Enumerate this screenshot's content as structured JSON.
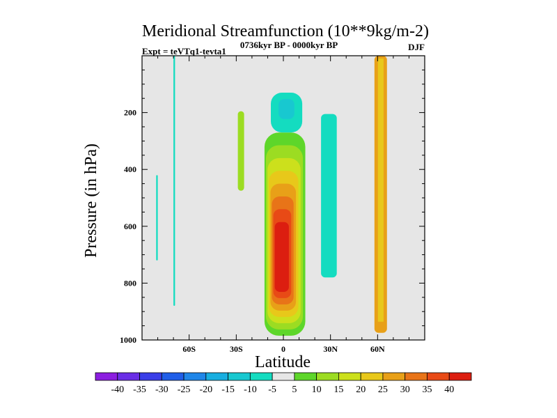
{
  "chart_data": {
    "type": "heatmap",
    "title": "Meridional Streamfunction (10**9kg/m-2)",
    "subtitle_left": "Expt = teVTq1-tevta1",
    "subtitle_center": "0736kyr BP - 0000kyr BP",
    "subtitle_right": "DJF",
    "xlabel": "Latitude",
    "ylabel": "Pressure (in hPa)",
    "xlim": [
      -90,
      90
    ],
    "ylim": [
      1000,
      0
    ],
    "x_ticks": [
      -60,
      -30,
      0,
      30,
      60
    ],
    "x_tick_labels": [
      "60S",
      "30S",
      "0",
      "30N",
      "60N"
    ],
    "y_ticks": [
      200,
      400,
      600,
      800,
      1000
    ],
    "y_tick_labels": [
      "200",
      "400",
      "600",
      "800",
      "1000"
    ],
    "colorbar": {
      "levels": [
        -40,
        -35,
        -30,
        -25,
        -20,
        -15,
        -10,
        -5,
        5,
        10,
        15,
        20,
        25,
        30,
        35,
        40
      ],
      "labels": [
        "-40",
        "-35",
        "-30",
        "-25",
        "-20",
        "-15",
        "-10",
        "-5",
        "5",
        "10",
        "15",
        "20",
        "25",
        "30",
        "35",
        "40"
      ],
      "colors": [
        "#8c1ee0",
        "#6a2ee6",
        "#3a3ee8",
        "#1f5ee8",
        "#1f86e8",
        "#18aee0",
        "#18c8d0",
        "#14dcc0",
        "#e6e6e6",
        "#5ed62a",
        "#9cdc22",
        "#cce01c",
        "#e8c81a",
        "#e8a018",
        "#e87418",
        "#e84a16",
        "#dc1e10"
      ]
    },
    "features": [
      {
        "kind": "positive cell",
        "lat_range": [
          -12,
          14
        ],
        "pressure_range": [
          270,
          985
        ],
        "peak_value": 40,
        "peak_lat": -2,
        "peak_pressure": 750
      },
      {
        "kind": "negative cell",
        "lat_range": [
          -8,
          12
        ],
        "pressure_range": [
          130,
          270
        ],
        "peak_value": -15,
        "peak_lat": 2,
        "peak_pressure": 175
      },
      {
        "kind": "negative band",
        "lat_range": [
          24,
          34
        ],
        "pressure_range": [
          205,
          780
        ],
        "value": -10
      },
      {
        "kind": "negative band",
        "lat_range": [
          -70,
          -69
        ],
        "pressure_range": [
          0,
          880
        ],
        "value": -10
      },
      {
        "kind": "negative band",
        "lat_range": [
          -81,
          -80
        ],
        "pressure_range": [
          420,
          720
        ],
        "value": -10
      },
      {
        "kind": "positive band",
        "lat_range": [
          -29,
          -25
        ],
        "pressure_range": [
          195,
          475
        ],
        "value": 10
      },
      {
        "kind": "positive band",
        "lat_range": [
          58,
          66
        ],
        "pressure_range": [
          0,
          975
        ],
        "value": 25
      }
    ]
  }
}
